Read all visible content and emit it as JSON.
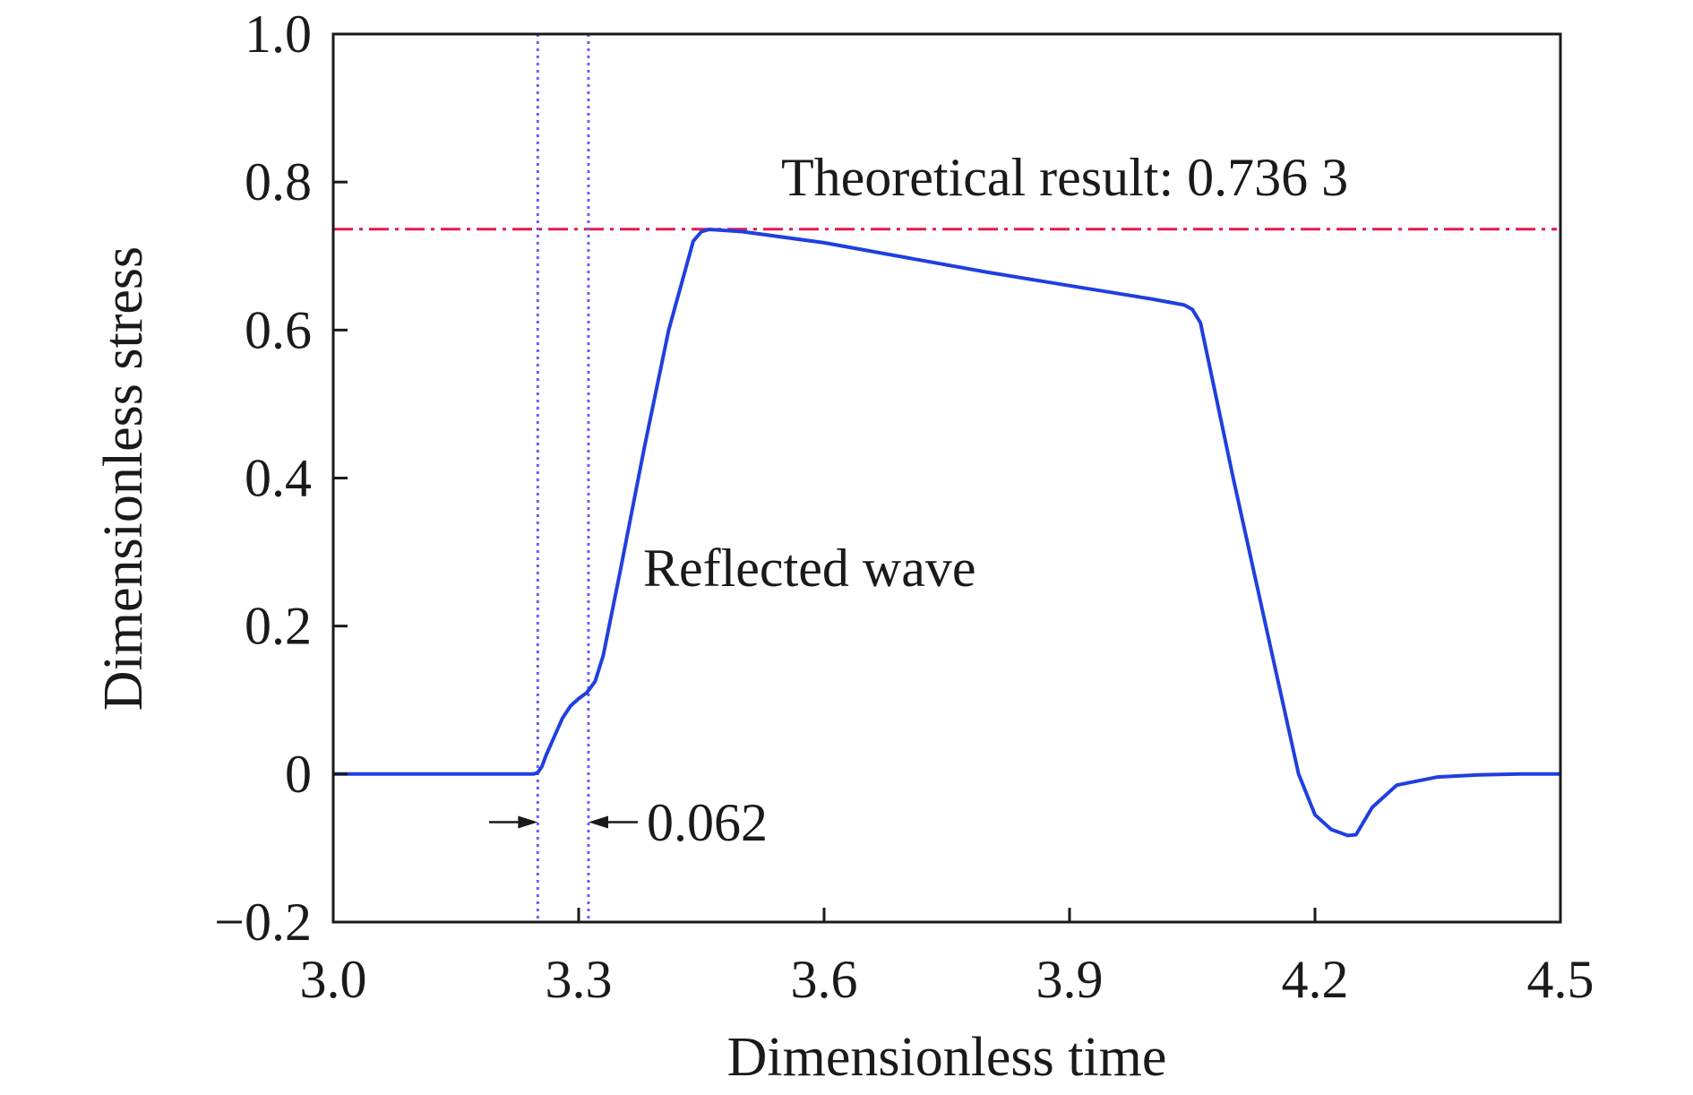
{
  "chart_data": {
    "type": "line",
    "xlabel": "Dimensionless time",
    "ylabel": "Dimensionless stress",
    "xlim": [
      3.0,
      4.5
    ],
    "ylim": [
      -0.2,
      1.0
    ],
    "xticks": [
      3.0,
      3.3,
      3.6,
      3.9,
      4.2,
      4.5
    ],
    "xtick_labels": [
      "3.0",
      "3.3",
      "3.6",
      "3.9",
      "4.2",
      "4.5"
    ],
    "yticks": [
      -0.2,
      0,
      0.2,
      0.4,
      0.6,
      0.8,
      1.0
    ],
    "ytick_labels": [
      "−0.2",
      "0",
      "0.2",
      "0.4",
      "0.6",
      "0.8",
      "1.0"
    ],
    "grid": false,
    "series": [
      {
        "color": "#1f3fe0",
        "x": [
          3.0,
          3.1,
          3.2,
          3.245,
          3.25,
          3.255,
          3.26,
          3.27,
          3.28,
          3.29,
          3.3,
          3.31,
          3.32,
          3.33,
          3.35,
          3.38,
          3.41,
          3.44,
          3.45,
          3.46,
          3.5,
          3.6,
          3.7,
          3.8,
          3.9,
          4.0,
          4.03,
          4.04,
          4.05,
          4.06,
          4.1,
          4.15,
          4.18,
          4.2,
          4.22,
          4.24,
          4.25,
          4.27,
          4.3,
          4.35,
          4.4,
          4.45,
          4.5
        ],
        "y": [
          0,
          0,
          0,
          0,
          0.002,
          0.01,
          0.025,
          0.05,
          0.075,
          0.092,
          0.102,
          0.11,
          0.125,
          0.16,
          0.27,
          0.44,
          0.6,
          0.72,
          0.733,
          0.736,
          0.733,
          0.718,
          0.698,
          0.678,
          0.66,
          0.642,
          0.636,
          0.634,
          0.628,
          0.61,
          0.4,
          0.15,
          0.0,
          -0.055,
          -0.075,
          -0.083,
          -0.082,
          -0.045,
          -0.015,
          -0.004,
          -0.001,
          0,
          0
        ]
      }
    ],
    "reference_lines": [
      {
        "orientation": "horizontal",
        "value": 0.7363,
        "style": "dash-dot",
        "color": "#e8174f",
        "label": "Theoretical result: 0.736 3"
      },
      {
        "orientation": "vertical",
        "value": 3.25,
        "style": "dotted",
        "color": "#6a5cff"
      },
      {
        "orientation": "vertical",
        "value": 3.312,
        "style": "dotted",
        "color": "#6a5cff"
      }
    ],
    "annotations": [
      {
        "text": "Reflected wave",
        "x": 3.38,
        "y": 0.27
      },
      {
        "text": "0.062",
        "x": 3.34,
        "y": -0.065
      }
    ]
  }
}
